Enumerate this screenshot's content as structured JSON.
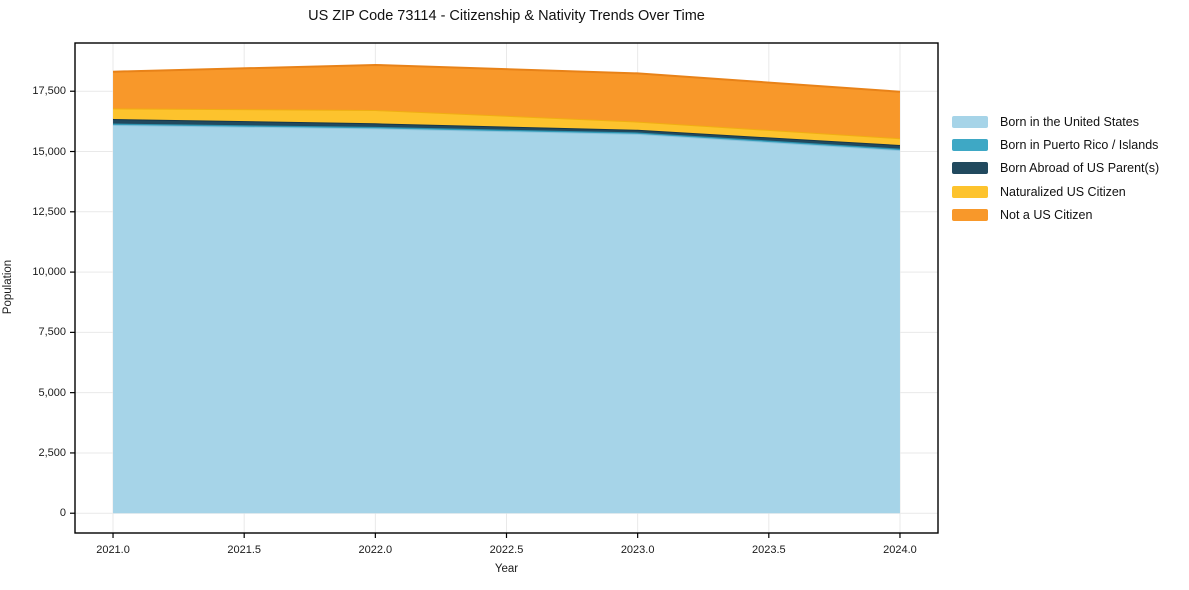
{
  "chart_data": {
    "type": "area",
    "stacked": true,
    "title": "US ZIP Code 73114 - Citizenship & Nativity Trends Over Time",
    "xlabel": "Year",
    "ylabel": "Population",
    "x": [
      2021,
      2022,
      2023,
      2024
    ],
    "series": [
      {
        "name": "Born in the United States",
        "values": [
          16100,
          15960,
          15730,
          15060
        ],
        "fill": "#A6D4E8",
        "line": "#8CC3DC"
      },
      {
        "name": "Born in Puerto Rico / Islands",
        "values": [
          60,
          60,
          60,
          60
        ],
        "fill": "#3EA8C5",
        "line": "#2D90AC"
      },
      {
        "name": "Born Abroad of US Parent(s)",
        "values": [
          190,
          150,
          110,
          150
        ],
        "fill": "#21495E",
        "line": "#16374A"
      },
      {
        "name": "Naturalized US Citizen",
        "values": [
          440,
          550,
          340,
          280
        ],
        "fill": "#FDC32D",
        "line": "#F0AE12"
      },
      {
        "name": "Not a US Citizen",
        "values": [
          1520,
          1870,
          2000,
          1930
        ],
        "fill": "#F8982A",
        "line": "#E88218"
      }
    ],
    "x_tick_values": [
      2021.0,
      2021.5,
      2022.0,
      2022.5,
      2023.0,
      2023.5,
      2024.0
    ],
    "x_tick_labels": [
      "2021.0",
      "2021.5",
      "2022.0",
      "2022.5",
      "2023.0",
      "2023.5",
      "2024.0"
    ],
    "y_tick_values": [
      0,
      2500,
      5000,
      7500,
      10000,
      12500,
      15000,
      17500
    ],
    "y_tick_labels": [
      "0",
      "2,500",
      "5,000",
      "7,500",
      "10,000",
      "12,500",
      "15,000",
      "17,500"
    ],
    "xlim": [
      2020.855,
      2024.145
    ],
    "ylim": [
      -820,
      19500
    ],
    "grid": true,
    "legend_position": "right-outside",
    "colors": {
      "background": "#ffffff",
      "gridline": "#e9e9e9",
      "spine": "#000000",
      "tick_text": "#1a1a1a",
      "title_text": "#111111"
    }
  }
}
